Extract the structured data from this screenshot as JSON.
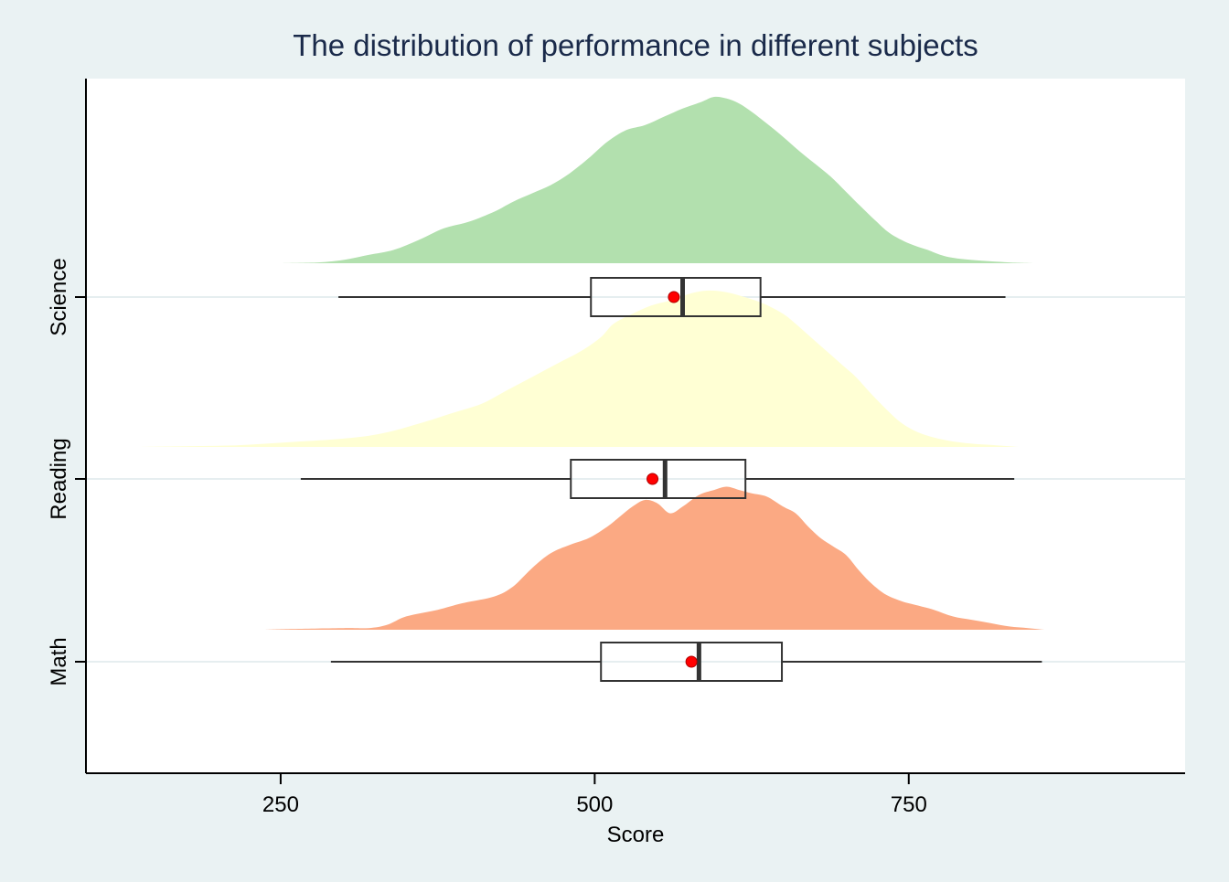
{
  "chart_data": {
    "type": "raincloud",
    "title": "The distribution of performance in different subjects",
    "xlabel": "Score",
    "ylabel": "",
    "xlim": [
      95,
      970
    ],
    "xticks": [
      250,
      500,
      750
    ],
    "grid": "horizontal",
    "categories": [
      "Math",
      "Reading",
      "Science"
    ],
    "series": [
      {
        "category": "Math",
        "color": "#fba983",
        "box": {
          "min": 290,
          "q1": 505,
          "median": 583,
          "q3": 649,
          "max": 856
        },
        "mean": 577,
        "density": [
          [
            236,
            0
          ],
          [
            260,
            0.005
          ],
          [
            300,
            0.01
          ],
          [
            320,
            0.01
          ],
          [
            335,
            0.03
          ],
          [
            350,
            0.08
          ],
          [
            375,
            0.12
          ],
          [
            395,
            0.16
          ],
          [
            420,
            0.2
          ],
          [
            435,
            0.26
          ],
          [
            450,
            0.37
          ],
          [
            465,
            0.46
          ],
          [
            480,
            0.51
          ],
          [
            495,
            0.55
          ],
          [
            510,
            0.62
          ],
          [
            520,
            0.68
          ],
          [
            530,
            0.74
          ],
          [
            540,
            0.78
          ],
          [
            550,
            0.76
          ],
          [
            560,
            0.7
          ],
          [
            570,
            0.74
          ],
          [
            583,
            0.81
          ],
          [
            595,
            0.84
          ],
          [
            605,
            0.86
          ],
          [
            615,
            0.84
          ],
          [
            625,
            0.82
          ],
          [
            637,
            0.8
          ],
          [
            650,
            0.74
          ],
          [
            660,
            0.7
          ],
          [
            670,
            0.62
          ],
          [
            680,
            0.55
          ],
          [
            690,
            0.5
          ],
          [
            700,
            0.45
          ],
          [
            710,
            0.36
          ],
          [
            720,
            0.28
          ],
          [
            732,
            0.21
          ],
          [
            745,
            0.17
          ],
          [
            755,
            0.15
          ],
          [
            770,
            0.12
          ],
          [
            785,
            0.08
          ],
          [
            800,
            0.06
          ],
          [
            815,
            0.04
          ],
          [
            830,
            0.02
          ],
          [
            845,
            0.01
          ],
          [
            858,
            0
          ]
        ]
      },
      {
        "category": "Reading",
        "color": "#ffffd4",
        "box": {
          "min": 266,
          "q1": 481,
          "median": 556,
          "q3": 620,
          "max": 834
        },
        "mean": 546,
        "density": [
          [
            135,
            0
          ],
          [
            180,
            0.005
          ],
          [
            215,
            0.01
          ],
          [
            260,
            0.03
          ],
          [
            300,
            0.05
          ],
          [
            330,
            0.08
          ],
          [
            360,
            0.14
          ],
          [
            385,
            0.2
          ],
          [
            410,
            0.26
          ],
          [
            430,
            0.34
          ],
          [
            450,
            0.42
          ],
          [
            470,
            0.5
          ],
          [
            490,
            0.58
          ],
          [
            505,
            0.66
          ],
          [
            515,
            0.74
          ],
          [
            530,
            0.8
          ],
          [
            545,
            0.85
          ],
          [
            560,
            0.88
          ],
          [
            575,
            0.92
          ],
          [
            590,
            0.94
          ],
          [
            605,
            0.93
          ],
          [
            620,
            0.9
          ],
          [
            635,
            0.86
          ],
          [
            650,
            0.8
          ],
          [
            660,
            0.74
          ],
          [
            672,
            0.66
          ],
          [
            684,
            0.58
          ],
          [
            696,
            0.5
          ],
          [
            708,
            0.42
          ],
          [
            720,
            0.32
          ],
          [
            733,
            0.22
          ],
          [
            745,
            0.14
          ],
          [
            760,
            0.08
          ],
          [
            780,
            0.04
          ],
          [
            800,
            0.02
          ],
          [
            820,
            0.01
          ],
          [
            838,
            0
          ]
        ]
      },
      {
        "category": "Science",
        "color": "#b2e0ae",
        "box": {
          "min": 296,
          "q1": 497,
          "median": 570,
          "q3": 632,
          "max": 827
        },
        "mean": 563,
        "density": [
          [
            249,
            0
          ],
          [
            280,
            0.005
          ],
          [
            300,
            0.02
          ],
          [
            320,
            0.05
          ],
          [
            340,
            0.08
          ],
          [
            360,
            0.14
          ],
          [
            380,
            0.21
          ],
          [
            400,
            0.25
          ],
          [
            420,
            0.31
          ],
          [
            435,
            0.37
          ],
          [
            450,
            0.42
          ],
          [
            465,
            0.47
          ],
          [
            480,
            0.54
          ],
          [
            495,
            0.63
          ],
          [
            510,
            0.73
          ],
          [
            525,
            0.8
          ],
          [
            540,
            0.83
          ],
          [
            555,
            0.88
          ],
          [
            570,
            0.93
          ],
          [
            585,
            0.97
          ],
          [
            595,
            1.0
          ],
          [
            605,
            0.99
          ],
          [
            615,
            0.96
          ],
          [
            625,
            0.91
          ],
          [
            637,
            0.84
          ],
          [
            650,
            0.76
          ],
          [
            662,
            0.68
          ],
          [
            675,
            0.6
          ],
          [
            688,
            0.52
          ],
          [
            700,
            0.43
          ],
          [
            712,
            0.34
          ],
          [
            723,
            0.26
          ],
          [
            735,
            0.18
          ],
          [
            750,
            0.12
          ],
          [
            765,
            0.08
          ],
          [
            780,
            0.04
          ],
          [
            800,
            0.02
          ],
          [
            830,
            0.005
          ],
          [
            850,
            0
          ]
        ]
      }
    ]
  }
}
